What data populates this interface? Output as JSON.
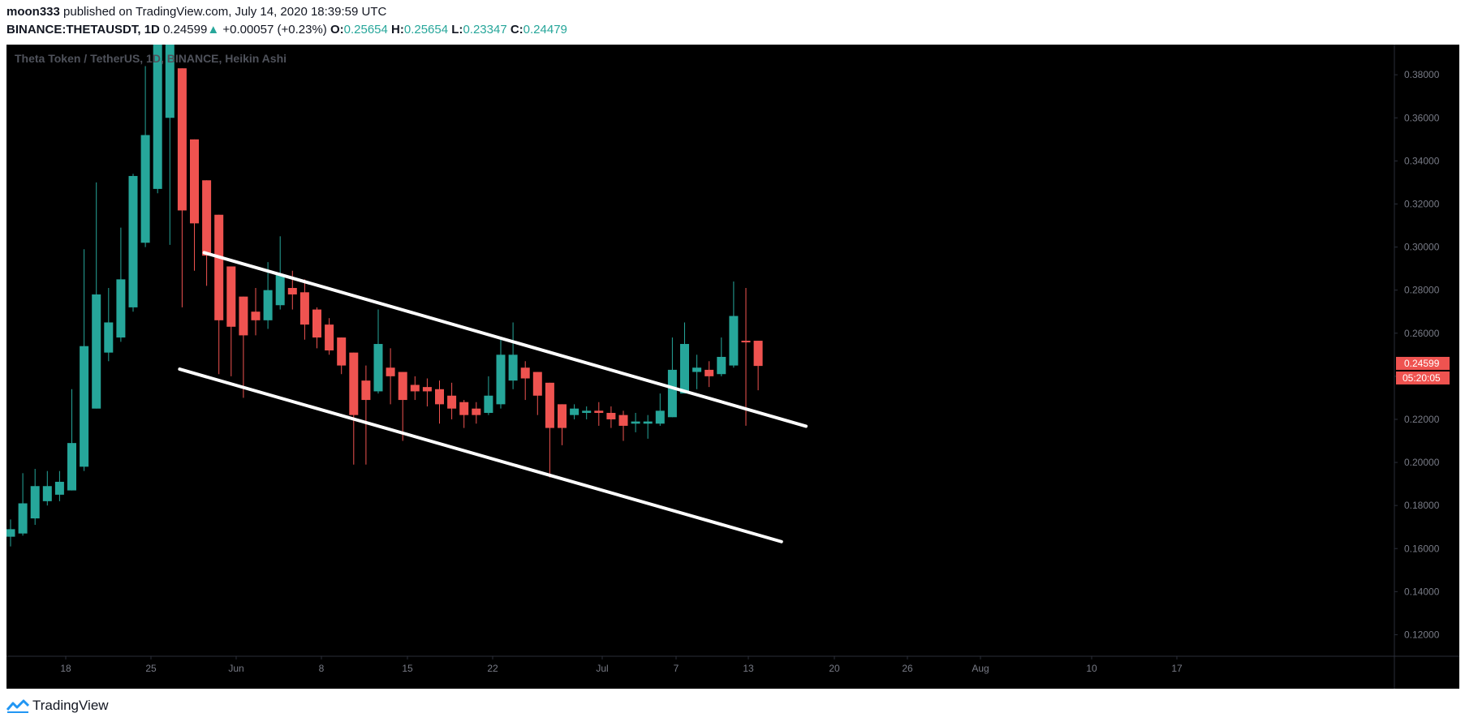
{
  "header": {
    "author": "moon333",
    "published_text": "published on TradingView.com, July 14, 2020 18:39:59 UTC",
    "symbol": "BINANCE:THETAUSDT, 1D",
    "last": "0.24599",
    "change": "+0.00057 (+0.23%)",
    "o_label": "O:",
    "o_value": "0.25654",
    "h_label": "H:",
    "h_value": "0.25654",
    "l_label": "L:",
    "l_value": "0.23347",
    "c_label": "C:",
    "c_value": "0.24479"
  },
  "footer": {
    "brand": "TradingView",
    "logo_icon": "tradingview-logo-icon"
  },
  "colors": {
    "up": "#26a69a",
    "down": "#ef5350",
    "background": "#000000",
    "trendline": "#ffffff",
    "axis_text": "#787b86"
  },
  "chart_data": {
    "type": "candlestick",
    "title": "Theta Token / TetherUS, 1D, BINANCE, Heikin Ashi",
    "ylim": [
      0.11,
      0.394
    ],
    "y_ticks": [
      "0.38000",
      "0.36000",
      "0.34000",
      "0.32000",
      "0.30000",
      "0.28000",
      "0.26000",
      "0.24000",
      "0.22000",
      "0.20000",
      "0.18000",
      "0.16000",
      "0.14000",
      "0.12000"
    ],
    "x_ticks": [
      "18",
      "25",
      "Jun",
      "8",
      "15",
      "22",
      "Jul",
      "7",
      "13",
      "20",
      "26",
      "Aug",
      "10",
      "17"
    ],
    "price_label": "0.24599",
    "countdown_label": "05:20:05",
    "candles": [
      {
        "o": 0.1655,
        "h": 0.1735,
        "l": 0.161,
        "c": 0.169
      },
      {
        "o": 0.167,
        "h": 0.195,
        "l": 0.166,
        "c": 0.181
      },
      {
        "o": 0.174,
        "h": 0.197,
        "l": 0.171,
        "c": 0.189
      },
      {
        "o": 0.182,
        "h": 0.196,
        "l": 0.18,
        "c": 0.189
      },
      {
        "o": 0.185,
        "h": 0.196,
        "l": 0.182,
        "c": 0.191
      },
      {
        "o": 0.187,
        "h": 0.234,
        "l": 0.187,
        "c": 0.209
      },
      {
        "o": 0.198,
        "h": 0.299,
        "l": 0.196,
        "c": 0.254
      },
      {
        "o": 0.225,
        "h": 0.33,
        "l": 0.225,
        "c": 0.278
      },
      {
        "o": 0.251,
        "h": 0.281,
        "l": 0.247,
        "c": 0.265
      },
      {
        "o": 0.258,
        "h": 0.309,
        "l": 0.256,
        "c": 0.285
      },
      {
        "o": 0.272,
        "h": 0.334,
        "l": 0.27,
        "c": 0.333
      },
      {
        "o": 0.302,
        "h": 0.384,
        "l": 0.3,
        "c": 0.352
      },
      {
        "o": 0.327,
        "h": 0.408,
        "l": 0.325,
        "c": 0.41
      },
      {
        "o": 0.36,
        "h": 0.42,
        "l": 0.301,
        "c": 0.42
      },
      {
        "o": 0.383,
        "h": 0.383,
        "l": 0.272,
        "c": 0.317
      },
      {
        "o": 0.35,
        "h": 0.35,
        "l": 0.289,
        "c": 0.311
      },
      {
        "o": 0.331,
        "h": 0.331,
        "l": 0.282,
        "c": 0.296
      },
      {
        "o": 0.315,
        "h": 0.315,
        "l": 0.241,
        "c": 0.266
      },
      {
        "o": 0.291,
        "h": 0.291,
        "l": 0.24,
        "c": 0.263
      },
      {
        "o": 0.277,
        "h": 0.277,
        "l": 0.23,
        "c": 0.259
      },
      {
        "o": 0.27,
        "h": 0.281,
        "l": 0.259,
        "c": 0.266
      },
      {
        "o": 0.266,
        "h": 0.293,
        "l": 0.262,
        "c": 0.28
      },
      {
        "o": 0.273,
        "h": 0.305,
        "l": 0.271,
        "c": 0.287
      },
      {
        "o": 0.281,
        "h": 0.289,
        "l": 0.271,
        "c": 0.278
      },
      {
        "o": 0.279,
        "h": 0.285,
        "l": 0.257,
        "c": 0.264
      },
      {
        "o": 0.271,
        "h": 0.272,
        "l": 0.253,
        "c": 0.258
      },
      {
        "o": 0.264,
        "h": 0.267,
        "l": 0.25,
        "c": 0.252
      },
      {
        "o": 0.258,
        "h": 0.258,
        "l": 0.241,
        "c": 0.245
      },
      {
        "o": 0.251,
        "h": 0.251,
        "l": 0.199,
        "c": 0.222
      },
      {
        "o": 0.238,
        "h": 0.245,
        "l": 0.199,
        "c": 0.229
      },
      {
        "o": 0.233,
        "h": 0.271,
        "l": 0.232,
        "c": 0.255
      },
      {
        "o": 0.244,
        "h": 0.253,
        "l": 0.227,
        "c": 0.24
      },
      {
        "o": 0.242,
        "h": 0.242,
        "l": 0.21,
        "c": 0.229
      },
      {
        "o": 0.236,
        "h": 0.24,
        "l": 0.229,
        "c": 0.233
      },
      {
        "o": 0.235,
        "h": 0.239,
        "l": 0.226,
        "c": 0.233
      },
      {
        "o": 0.234,
        "h": 0.238,
        "l": 0.218,
        "c": 0.227
      },
      {
        "o": 0.231,
        "h": 0.237,
        "l": 0.22,
        "c": 0.225
      },
      {
        "o": 0.228,
        "h": 0.229,
        "l": 0.216,
        "c": 0.222
      },
      {
        "o": 0.225,
        "h": 0.228,
        "l": 0.218,
        "c": 0.222
      },
      {
        "o": 0.223,
        "h": 0.24,
        "l": 0.222,
        "c": 0.231
      },
      {
        "o": 0.227,
        "h": 0.257,
        "l": 0.225,
        "c": 0.25
      },
      {
        "o": 0.238,
        "h": 0.265,
        "l": 0.234,
        "c": 0.25
      },
      {
        "o": 0.244,
        "h": 0.247,
        "l": 0.229,
        "c": 0.239
      },
      {
        "o": 0.242,
        "h": 0.242,
        "l": 0.222,
        "c": 0.231
      },
      {
        "o": 0.237,
        "h": 0.237,
        "l": 0.193,
        "c": 0.216
      },
      {
        "o": 0.227,
        "h": 0.227,
        "l": 0.208,
        "c": 0.216
      },
      {
        "o": 0.222,
        "h": 0.227,
        "l": 0.22,
        "c": 0.225
      },
      {
        "o": 0.223,
        "h": 0.226,
        "l": 0.22,
        "c": 0.224
      },
      {
        "o": 0.224,
        "h": 0.228,
        "l": 0.217,
        "c": 0.223
      },
      {
        "o": 0.223,
        "h": 0.226,
        "l": 0.216,
        "c": 0.22
      },
      {
        "o": 0.222,
        "h": 0.224,
        "l": 0.21,
        "c": 0.217
      },
      {
        "o": 0.218,
        "h": 0.223,
        "l": 0.214,
        "c": 0.219
      },
      {
        "o": 0.218,
        "h": 0.222,
        "l": 0.211,
        "c": 0.219
      },
      {
        "o": 0.218,
        "h": 0.232,
        "l": 0.217,
        "c": 0.224
      },
      {
        "o": 0.221,
        "h": 0.258,
        "l": 0.221,
        "c": 0.243
      },
      {
        "o": 0.232,
        "h": 0.265,
        "l": 0.233,
        "c": 0.255
      },
      {
        "o": 0.242,
        "h": 0.25,
        "l": 0.234,
        "c": 0.244
      },
      {
        "o": 0.243,
        "h": 0.247,
        "l": 0.235,
        "c": 0.24
      },
      {
        "o": 0.241,
        "h": 0.258,
        "l": 0.24,
        "c": 0.249
      },
      {
        "o": 0.245,
        "h": 0.284,
        "l": 0.244,
        "c": 0.268
      },
      {
        "o": 0.2565,
        "h": 0.281,
        "l": 0.217,
        "c": 0.256
      },
      {
        "o": 0.2565,
        "h": 0.2565,
        "l": 0.2335,
        "c": 0.2448
      }
    ],
    "trendlines": [
      {
        "x1_candle": 15.8,
        "y1": 0.2974,
        "x2_candle": 64.9,
        "y2": 0.2168
      },
      {
        "x1_candle": 13.8,
        "y1": 0.2433,
        "x2_candle": 62.9,
        "y2": 0.1632
      }
    ]
  }
}
